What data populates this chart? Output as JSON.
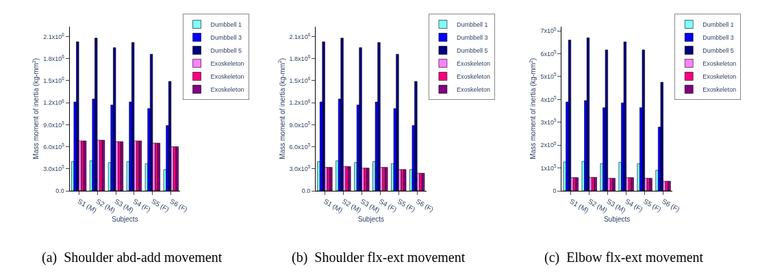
{
  "chart_data": [
    {
      "type": "bar",
      "xlabel": "Subjects",
      "ylabel": "Mass moment of inertia (kg-mm$^{2}$)",
      "annotations": [
        "(a)  Shoulder abd-add movement"
      ],
      "categories": [
        "S1 (M)",
        "S2 (M)",
        "S3 (M)",
        "S4 (F)",
        "S5 (F)",
        "S6 (F)"
      ],
      "legend": "top right",
      "ylim": [
        0,
        2240000
      ],
      "yticks": [
        {
          "value": 0,
          "label": "0.0"
        },
        {
          "value": 300000,
          "label": "3.0x10$^{5}$"
        },
        {
          "value": 600000,
          "label": "6.0x10$^{5}$"
        },
        {
          "value": 900000,
          "label": "9.0x10$^{5}$"
        },
        {
          "value": 1200000,
          "label": "1.2x10$^{6}$"
        },
        {
          "value": 1500000,
          "label": "1.5x10$^{6}$"
        },
        {
          "value": 1800000,
          "label": "1.8x10$^{6}$"
        },
        {
          "value": 2100000,
          "label": "2.1x10$^{6}$"
        }
      ],
      "series": [
        {
          "name": "Dumbbell 1",
          "color": "#80ffff",
          "values": [
            398000,
            410000,
            385000,
            400000,
            370000,
            290000
          ]
        },
        {
          "name": "Dumbbell 3",
          "color": "#0000ff",
          "values": [
            1210000,
            1250000,
            1170000,
            1210000,
            1120000,
            890000
          ]
        },
        {
          "name": "Dumbbell 5",
          "color": "#000080",
          "values": [
            2030000,
            2080000,
            1950000,
            2020000,
            1860000,
            1490000
          ]
        },
        {
          "name": "Exoskeleton",
          "color": "#ff80ff",
          "values": [
            680000,
            690000,
            670000,
            680000,
            650000,
            600000
          ]
        },
        {
          "name": "Exoskeleton",
          "color": "#ff0080",
          "values": [
            680000,
            690000,
            670000,
            680000,
            650000,
            600000
          ]
        },
        {
          "name": "Exoskeleton",
          "color": "#800080",
          "values": [
            680000,
            690000,
            670000,
            680000,
            650000,
            600000
          ]
        }
      ]
    },
    {
      "type": "bar",
      "xlabel": "Subjects",
      "ylabel": "Mass moment of inertia (kg-mm$^{2}$)",
      "annotations": [
        "(b)  Shoulder flx-ext movement"
      ],
      "categories": [
        "S1 (M)",
        "S2 (M)",
        "S3 (M)",
        "S4 (F)",
        "S5 (F)",
        "S6 (F)"
      ],
      "legend": "top right",
      "ylim": [
        0,
        2240000
      ],
      "yticks": [
        {
          "value": 0,
          "label": "0.0"
        },
        {
          "value": 300000,
          "label": "3.0x10$^{5}$"
        },
        {
          "value": 600000,
          "label": "6.0x10$^{5}$"
        },
        {
          "value": 900000,
          "label": "9.0x10$^{5}$"
        },
        {
          "value": 1200000,
          "label": "1.2x10$^{6}$"
        },
        {
          "value": 1500000,
          "label": "1.5x10$^{6}$"
        },
        {
          "value": 1800000,
          "label": "1.8x10$^{6}$"
        },
        {
          "value": 2100000,
          "label": "2.1x10$^{6}$"
        }
      ],
      "series": [
        {
          "name": "Dumbbell 1",
          "color": "#80ffff",
          "values": [
            398000,
            410000,
            385000,
            400000,
            370000,
            290000
          ]
        },
        {
          "name": "Dumbbell 3",
          "color": "#0000ff",
          "values": [
            1210000,
            1250000,
            1170000,
            1210000,
            1120000,
            890000
          ]
        },
        {
          "name": "Dumbbell 5",
          "color": "#000080",
          "values": [
            2030000,
            2080000,
            1950000,
            2020000,
            1860000,
            1490000
          ]
        },
        {
          "name": "Exoskeleton",
          "color": "#ff80ff",
          "values": [
            320000,
            330000,
            310000,
            320000,
            290000,
            240000
          ]
        },
        {
          "name": "Exoskeleton",
          "color": "#ff0080",
          "values": [
            320000,
            330000,
            310000,
            320000,
            290000,
            240000
          ]
        },
        {
          "name": "Exoskeleton",
          "color": "#800080",
          "values": [
            320000,
            330000,
            310000,
            320000,
            290000,
            240000
          ]
        }
      ]
    },
    {
      "type": "bar",
      "xlabel": "Subjects",
      "ylabel": "Mass moment of inertia (kg-mm$^{2}$)",
      "annotations": [
        "(c)  Elbow flx-ext movement"
      ],
      "categories": [
        "S1 (M)",
        "S2 (M)",
        "S3 (M)",
        "S4 (F)",
        "S5 (F)",
        "S6 (F)"
      ],
      "legend": "top right",
      "ylim": [
        0,
        720000
      ],
      "yticks": [
        0,
        {
          "value": 100000,
          "label": "1x10$^{5}$"
        },
        {
          "value": 200000,
          "label": "2x10$^{5}$"
        },
        {
          "value": 300000,
          "label": "3x10$^{5}$"
        },
        {
          "value": 400000,
          "label": "4x10$^{5}$"
        },
        {
          "value": 500000,
          "label": "5x10$^{5}$"
        },
        {
          "value": 600000,
          "label": "6x10$^{5}$"
        },
        {
          "value": 700000,
          "label": "7x10$^{5}$"
        }
      ],
      "series": [
        {
          "name": "Dumbbell 1",
          "color": "#80ffff",
          "values": [
            126000,
            129000,
            119000,
            125000,
            119000,
            90000
          ]
        },
        {
          "name": "Dumbbell 3",
          "color": "#0000ff",
          "values": [
            389000,
            395000,
            364000,
            385000,
            364000,
            279000
          ]
        },
        {
          "name": "Dumbbell 5",
          "color": "#000080",
          "values": [
            660000,
            670000,
            617000,
            652000,
            617000,
            475000
          ]
        },
        {
          "name": "Exoskeleton",
          "color": "#ff80ff",
          "values": [
            58000,
            59000,
            55000,
            58000,
            55000,
            42000
          ]
        },
        {
          "name": "Exoskeleton",
          "color": "#ff0080",
          "values": [
            58000,
            59000,
            55000,
            58000,
            55000,
            42000
          ]
        },
        {
          "name": "Exoskeleton",
          "color": "#800080",
          "values": [
            58000,
            59000,
            55000,
            58000,
            55000,
            42000
          ]
        }
      ]
    }
  ]
}
